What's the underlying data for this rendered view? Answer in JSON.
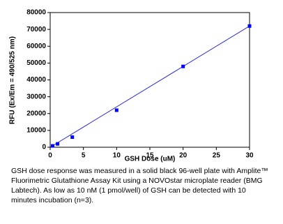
{
  "chart_data": {
    "type": "scatter",
    "x_label": "GSH Dose (uM)",
    "y_label": "RFU (Ex/Em = 490/525 nm)",
    "series": [
      {
        "color": "#0000ff",
        "x": [
          0.37,
          1.11,
          3.33,
          10,
          20,
          30
        ],
        "values": [
          800,
          2000,
          6000,
          22000,
          48000,
          72000
        ]
      }
    ],
    "fit_line": {
      "color": "#2b2bd6",
      "x": [
        0,
        30
      ],
      "values": [
        0,
        72000
      ]
    },
    "xlim": [
      0,
      30
    ],
    "xticks": [
      0,
      5,
      10,
      15,
      20,
      25,
      30
    ],
    "ylim": [
      0,
      80000
    ],
    "yticks": [
      0,
      10000,
      20000,
      30000,
      40000,
      50000,
      60000,
      70000,
      80000
    ],
    "grid": false
  },
  "caption": {
    "lines": [
      "GSH dose response was measured in a solid black 96-well plate with Amplite™",
      "Fluorimetric Glutathione Assay Kit using a NOVOstar microplate reader (BMG",
      "Labtech). As low as 10 nM (1 pmol/well) of GSH can be detected with 10",
      "minutes incubation (n=3)."
    ]
  }
}
